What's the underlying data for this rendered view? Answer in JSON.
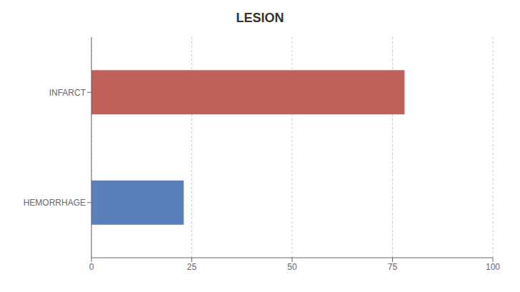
{
  "chart_data": {
    "type": "bar",
    "title": "LESION",
    "orientation": "horizontal",
    "categories": [
      "HEMORRHAGE",
      "INFARCT"
    ],
    "values": [
      23,
      78
    ],
    "colors": [
      "#5b7fbb",
      "#c0605a"
    ],
    "xlim": [
      0,
      100
    ],
    "xticks": [
      0,
      25,
      50,
      75,
      100
    ],
    "grid": true
  }
}
